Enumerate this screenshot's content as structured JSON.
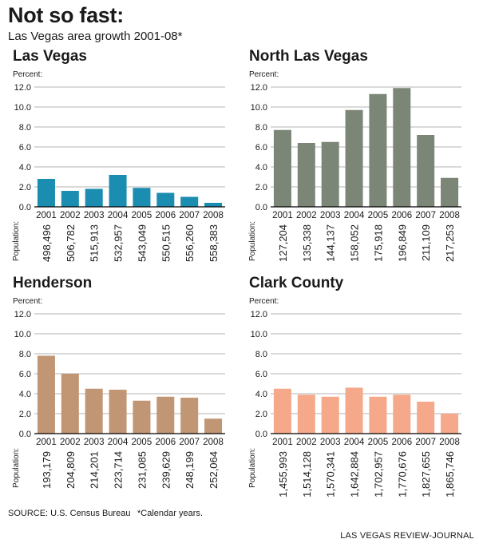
{
  "header": {
    "title": "Not so fast:",
    "subtitle": "Las Vegas area growth 2001-08*"
  },
  "footer": {
    "source": "SOURCE: U.S. Census Bureau",
    "note": "*Calendar years.",
    "credit": "LAS VEGAS REVIEW-JOURNAL"
  },
  "chart_data": [
    {
      "type": "bar",
      "title": "Las Vegas",
      "ylabel": "Percent:",
      "ylim": [
        0,
        12
      ],
      "yticks": [
        "0.0",
        "2.0",
        "4.0",
        "6.0",
        "8.0",
        "10.0",
        "12.0"
      ],
      "grid": true,
      "color": "#1a8db0",
      "categories": [
        "2001",
        "2002",
        "2003",
        "2004",
        "2005",
        "2006",
        "2007",
        "2008"
      ],
      "values": [
        2.8,
        1.6,
        1.8,
        3.2,
        1.9,
        1.4,
        1.0,
        0.4
      ],
      "population_label": "Population:",
      "population": [
        "498,496",
        "506,782",
        "515,913",
        "532,957",
        "543,049",
        "550,515",
        "556,260",
        "558,383"
      ]
    },
    {
      "type": "bar",
      "title": "North Las Vegas",
      "ylabel": "Percent:",
      "ylim": [
        0,
        12
      ],
      "yticks": [
        "0.0",
        "2.0",
        "4.0",
        "6.0",
        "8.0",
        "10.0",
        "12.0"
      ],
      "grid": true,
      "color": "#7c8677",
      "categories": [
        "2001",
        "2002",
        "2003",
        "2004",
        "2005",
        "2006",
        "2007",
        "2008"
      ],
      "values": [
        7.7,
        6.4,
        6.5,
        9.7,
        11.3,
        11.9,
        7.2,
        2.9
      ],
      "population_label": "Population:",
      "population": [
        "127,204",
        "135,338",
        "144,137",
        "158,052",
        "175,918",
        "196,849",
        "211,109",
        "217,253"
      ]
    },
    {
      "type": "bar",
      "title": "Henderson",
      "ylabel": "Percent:",
      "ylim": [
        0,
        12
      ],
      "yticks": [
        "0.0",
        "2.0",
        "4.0",
        "6.0",
        "8.0",
        "10.0",
        "12.0"
      ],
      "grid": true,
      "color": "#c19674",
      "categories": [
        "2001",
        "2002",
        "2003",
        "2004",
        "2005",
        "2006",
        "2007",
        "2008"
      ],
      "values": [
        7.8,
        6.0,
        4.5,
        4.4,
        3.3,
        3.7,
        3.6,
        1.5
      ],
      "population_label": "Population:",
      "population": [
        "193,179",
        "204,809",
        "214,201",
        "223,714",
        "231,085",
        "239,629",
        "248,199",
        "252,064"
      ]
    },
    {
      "type": "bar",
      "title": "Clark County",
      "ylabel": "Percent:",
      "ylim": [
        0,
        12
      ],
      "yticks": [
        "0.0",
        "2.0",
        "4.0",
        "6.0",
        "8.0",
        "10.0",
        "12.0"
      ],
      "grid": true,
      "color": "#f5a98a",
      "categories": [
        "2001",
        "2002",
        "2003",
        "2004",
        "2005",
        "2006",
        "2007",
        "2008"
      ],
      "values": [
        4.5,
        3.9,
        3.7,
        4.6,
        3.7,
        3.9,
        3.2,
        2.0
      ],
      "population_label": "Population:",
      "population": [
        "1,455,993",
        "1,514,128",
        "1,570,341",
        "1,642,884",
        "1,702,957",
        "1,770,676",
        "1,827,655",
        "1,865,746"
      ]
    }
  ]
}
